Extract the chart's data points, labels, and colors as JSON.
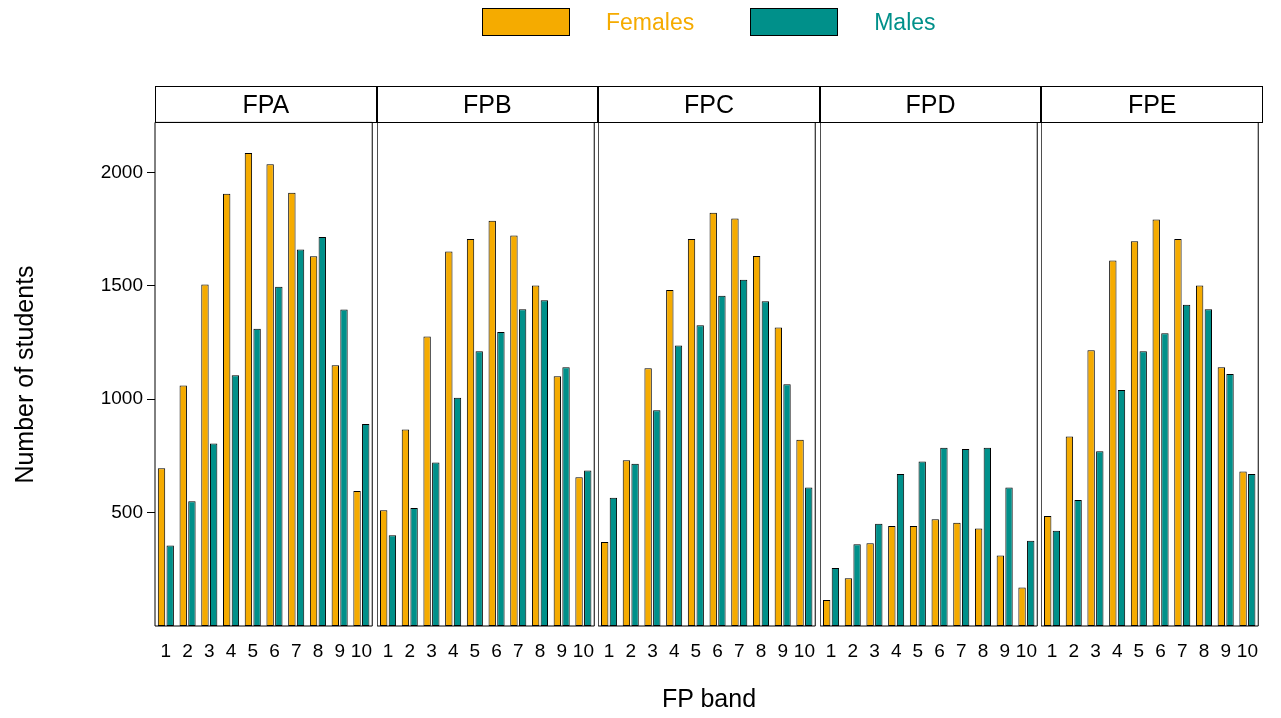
{
  "chart_data": [
    {
      "type": "bar",
      "title": "FPA",
      "ylabel": "Number of students",
      "legend": "top",
      "categories": [
        "1",
        "2",
        "3",
        "4",
        "5",
        "6",
        "7",
        "8",
        "9",
        "10"
      ],
      "ylim": [
        0,
        2220
      ],
      "yticks": [
        500,
        1000,
        1500,
        2000
      ],
      "series": [
        {
          "name": "Females",
          "color": "#f5ab00",
          "values": [
            695,
            1060,
            1505,
            1905,
            2085,
            2035,
            1910,
            1630,
            1150,
            595
          ]
        },
        {
          "name": "Males",
          "color": "#00908a",
          "values": [
            355,
            550,
            805,
            1105,
            1310,
            1495,
            1660,
            1715,
            1395,
            890
          ]
        }
      ]
    },
    {
      "type": "bar",
      "title": "FPB",
      "tick_labels": "x",
      "categories": [
        "1",
        "2",
        "3",
        "4",
        "5",
        "6",
        "7",
        "8",
        "9",
        "10"
      ],
      "ylim": [
        0,
        2220
      ],
      "yticks": [
        500,
        1000,
        1500,
        2000
      ],
      "series": [
        {
          "color": "#f5ab00",
          "values": [
            510,
            865,
            1275,
            1650,
            1705,
            1785,
            1720,
            1500,
            1100,
            655
          ]
        },
        {
          "color": "#00908a",
          "values": [
            400,
            520,
            720,
            1005,
            1210,
            1295,
            1395,
            1435,
            1140,
            685
          ]
        }
      ]
    },
    {
      "type": "bar",
      "title": "FPC",
      "xlabel": "FP band",
      "tick_labels": "x",
      "categories": [
        "1",
        "2",
        "3",
        "4",
        "5",
        "6",
        "7",
        "8",
        "9",
        "10"
      ],
      "ylim": [
        0,
        2220
      ],
      "yticks": [
        500,
        1000,
        1500,
        2000
      ],
      "series": [
        {
          "color": "#f5ab00",
          "values": [
            370,
            730,
            1135,
            1480,
            1705,
            1820,
            1795,
            1630,
            1315,
            820
          ]
        },
        {
          "color": "#00908a",
          "values": [
            565,
            715,
            950,
            1235,
            1325,
            1455,
            1525,
            1430,
            1065,
            610
          ]
        }
      ]
    },
    {
      "type": "bar",
      "title": "FPD",
      "tick_labels": "x",
      "categories": [
        "1",
        "2",
        "3",
        "4",
        "5",
        "6",
        "7",
        "8",
        "9",
        "10"
      ],
      "ylim": [
        0,
        2220
      ],
      "yticks": [
        500,
        1000,
        1500,
        2000
      ],
      "series": [
        {
          "color": "#f5ab00",
          "values": [
            115,
            210,
            365,
            440,
            440,
            470,
            455,
            430,
            310,
            170
          ]
        },
        {
          "color": "#00908a",
          "values": [
            255,
            360,
            450,
            670,
            725,
            785,
            780,
            785,
            610,
            375
          ]
        }
      ]
    },
    {
      "type": "bar",
      "title": "FPE",
      "tick_labels": "x",
      "categories": [
        "1",
        "2",
        "3",
        "4",
        "5",
        "6",
        "7",
        "8",
        "9",
        "10"
      ],
      "ylim": [
        0,
        2220
      ],
      "yticks": [
        500,
        1000,
        1500,
        2000
      ],
      "series": [
        {
          "color": "#f5ab00",
          "values": [
            485,
            835,
            1215,
            1610,
            1695,
            1790,
            1705,
            1500,
            1140,
            680
          ]
        },
        {
          "color": "#00908a",
          "values": [
            420,
            555,
            770,
            1040,
            1210,
            1290,
            1415,
            1395,
            1110,
            670
          ]
        }
      ]
    }
  ]
}
